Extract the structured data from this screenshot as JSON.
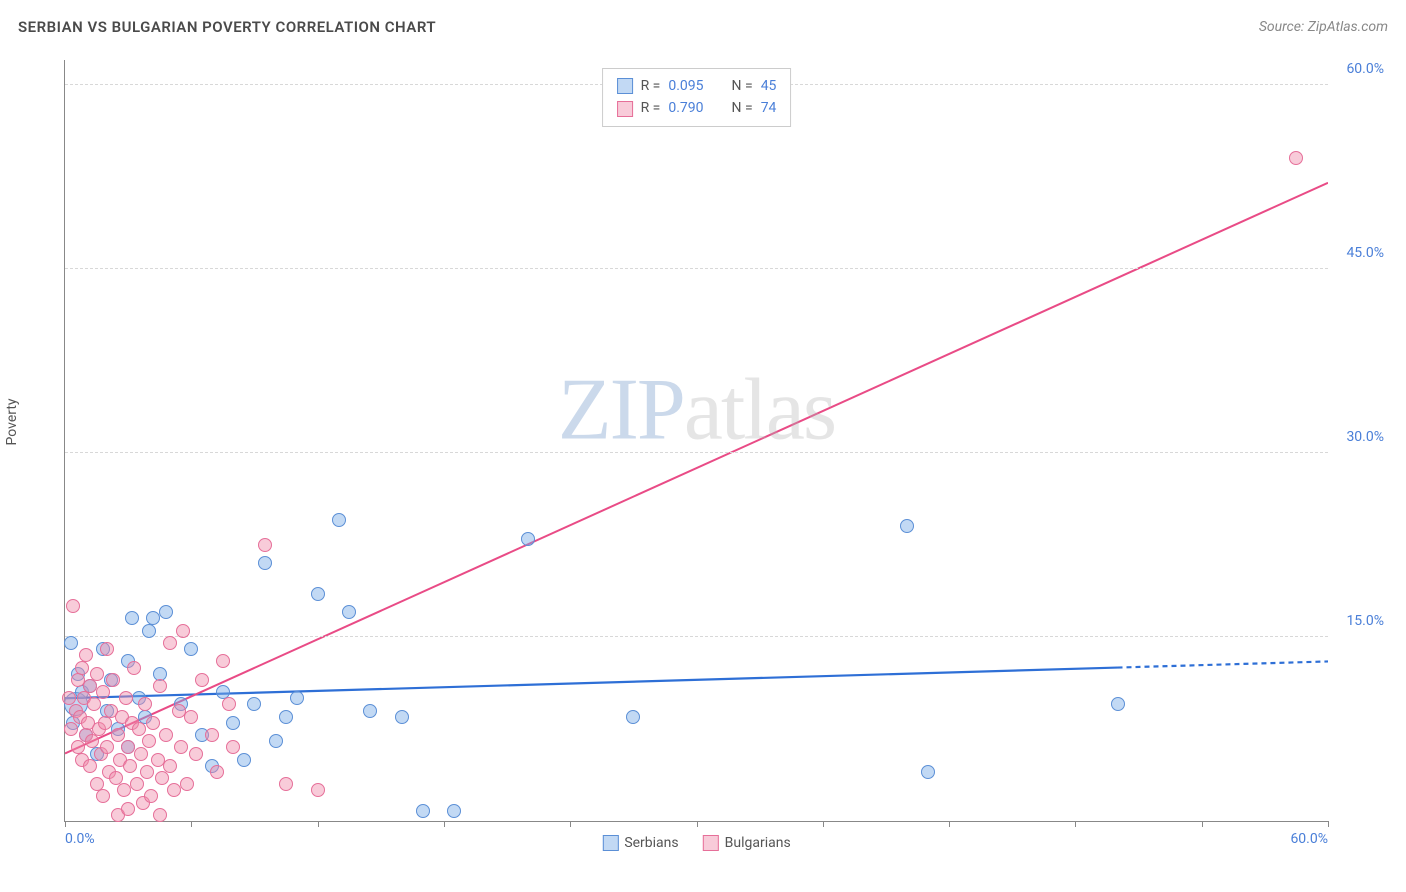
{
  "title": "SERBIAN VS BULGARIAN POVERTY CORRELATION CHART",
  "source_label": "Source: ZipAtlas.com",
  "y_axis_label": "Poverty",
  "watermark": {
    "part1": "ZIP",
    "part2": "atlas"
  },
  "chart": {
    "type": "scatter",
    "xlim": [
      0,
      60
    ],
    "ylim": [
      0,
      62
    ],
    "x_ticks": [
      0,
      6,
      12,
      18,
      24,
      30,
      36,
      42,
      48,
      54,
      60
    ],
    "x_tick_labels": {
      "0": "0.0%",
      "60": "60.0%"
    },
    "y_ticks": [
      15,
      30,
      45,
      60
    ],
    "y_tick_labels": [
      "15.0%",
      "30.0%",
      "45.0%",
      "60.0%"
    ],
    "grid_color": "#d8d8d8",
    "axis_color": "#888888",
    "background_color": "#ffffff",
    "marker_radius": 7,
    "marker_radius_large": 10,
    "series": [
      {
        "name": "Serbians",
        "fill": "rgba(120, 170, 230, 0.45)",
        "stroke": "#5b8fd6",
        "trend": {
          "x1": 0,
          "y1": 10.0,
          "x2": 50,
          "y2": 12.5,
          "x2_ext": 60,
          "y2_ext": 13.0,
          "color": "#2e6fd6",
          "width": 2.2
        },
        "points": [
          [
            0.3,
            14.5
          ],
          [
            0.4,
            8.0
          ],
          [
            0.5,
            9.5,
            12
          ],
          [
            0.6,
            12.0
          ],
          [
            0.8,
            10.5
          ],
          [
            1.0,
            7.0
          ],
          [
            1.2,
            11.0
          ],
          [
            1.5,
            5.5
          ],
          [
            1.8,
            14.0
          ],
          [
            2.0,
            9.0
          ],
          [
            2.2,
            11.5
          ],
          [
            2.5,
            7.5
          ],
          [
            3.0,
            13.0
          ],
          [
            3.0,
            6.0
          ],
          [
            3.2,
            16.5
          ],
          [
            3.5,
            10.0
          ],
          [
            3.8,
            8.5
          ],
          [
            4.0,
            15.5
          ],
          [
            4.2,
            16.5
          ],
          [
            4.5,
            12.0
          ],
          [
            4.8,
            17.0
          ],
          [
            5.5,
            9.5
          ],
          [
            6.0,
            14.0
          ],
          [
            6.5,
            7.0
          ],
          [
            7.0,
            4.5
          ],
          [
            7.5,
            10.5
          ],
          [
            8.0,
            8.0
          ],
          [
            8.5,
            5.0
          ],
          [
            9.0,
            9.5
          ],
          [
            9.5,
            21.0
          ],
          [
            10.0,
            6.5
          ],
          [
            10.5,
            8.5
          ],
          [
            11.0,
            10.0
          ],
          [
            12.0,
            18.5
          ],
          [
            13.0,
            24.5
          ],
          [
            13.5,
            17.0
          ],
          [
            14.5,
            9.0
          ],
          [
            16.0,
            8.5
          ],
          [
            17.0,
            0.8
          ],
          [
            18.5,
            0.8
          ],
          [
            22.0,
            23.0
          ],
          [
            27.0,
            8.5
          ],
          [
            40.0,
            24.0
          ],
          [
            41.0,
            4.0
          ],
          [
            50.0,
            9.5
          ]
        ]
      },
      {
        "name": "Bulgarians",
        "fill": "rgba(240, 140, 170, 0.45)",
        "stroke": "#e66f99",
        "trend": {
          "x1": 0,
          "y1": 5.5,
          "x2": 60,
          "y2": 52.0,
          "color": "#e94b86",
          "width": 2
        },
        "points": [
          [
            0.2,
            10.0
          ],
          [
            0.3,
            7.5
          ],
          [
            0.4,
            17.5
          ],
          [
            0.5,
            9.0
          ],
          [
            0.6,
            11.5
          ],
          [
            0.6,
            6.0
          ],
          [
            0.7,
            8.5
          ],
          [
            0.8,
            12.5
          ],
          [
            0.8,
            5.0
          ],
          [
            0.9,
            10.0
          ],
          [
            1.0,
            7.0
          ],
          [
            1.0,
            13.5
          ],
          [
            1.1,
            8.0
          ],
          [
            1.2,
            4.5
          ],
          [
            1.2,
            11.0
          ],
          [
            1.3,
            6.5
          ],
          [
            1.4,
            9.5
          ],
          [
            1.5,
            3.0
          ],
          [
            1.5,
            12.0
          ],
          [
            1.6,
            7.5
          ],
          [
            1.7,
            5.5
          ],
          [
            1.8,
            10.5
          ],
          [
            1.8,
            2.0
          ],
          [
            1.9,
            8.0
          ],
          [
            2.0,
            14.0
          ],
          [
            2.0,
            6.0
          ],
          [
            2.1,
            4.0
          ],
          [
            2.2,
            9.0
          ],
          [
            2.3,
            11.5
          ],
          [
            2.4,
            3.5
          ],
          [
            2.5,
            7.0
          ],
          [
            2.5,
            0.5
          ],
          [
            2.6,
            5.0
          ],
          [
            2.7,
            8.5
          ],
          [
            2.8,
            2.5
          ],
          [
            2.9,
            10.0
          ],
          [
            3.0,
            6.0
          ],
          [
            3.0,
            1.0
          ],
          [
            3.1,
            4.5
          ],
          [
            3.2,
            8.0
          ],
          [
            3.3,
            12.5
          ],
          [
            3.4,
            3.0
          ],
          [
            3.5,
            7.5
          ],
          [
            3.6,
            5.5
          ],
          [
            3.7,
            1.5
          ],
          [
            3.8,
            9.5
          ],
          [
            3.9,
            4.0
          ],
          [
            4.0,
            6.5
          ],
          [
            4.1,
            2.0
          ],
          [
            4.2,
            8.0
          ],
          [
            4.4,
            5.0
          ],
          [
            4.5,
            11.0
          ],
          [
            4.5,
            0.5
          ],
          [
            4.6,
            3.5
          ],
          [
            4.8,
            7.0
          ],
          [
            5.0,
            4.5
          ],
          [
            5.0,
            14.5
          ],
          [
            5.2,
            2.5
          ],
          [
            5.4,
            9.0
          ],
          [
            5.5,
            6.0
          ],
          [
            5.6,
            15.5
          ],
          [
            5.8,
            3.0
          ],
          [
            6.0,
            8.5
          ],
          [
            6.2,
            5.5
          ],
          [
            6.5,
            11.5
          ],
          [
            7.0,
            7.0
          ],
          [
            7.2,
            4.0
          ],
          [
            7.5,
            13.0
          ],
          [
            7.8,
            9.5
          ],
          [
            8.0,
            6.0
          ],
          [
            9.5,
            22.5
          ],
          [
            10.5,
            3.0
          ],
          [
            12.0,
            2.5
          ],
          [
            58.5,
            54.0
          ]
        ]
      }
    ]
  },
  "legend_top": {
    "rows": [
      {
        "swatch_fill": "rgba(120, 170, 230, 0.45)",
        "swatch_stroke": "#5b8fd6",
        "r_label": "R = ",
        "r_val": "0.095",
        "n_label": "N = ",
        "n_val": "45"
      },
      {
        "swatch_fill": "rgba(240, 140, 170, 0.45)",
        "swatch_stroke": "#e66f99",
        "r_label": "R = ",
        "r_val": "0.790",
        "n_label": "N = ",
        "n_val": "74"
      }
    ]
  },
  "legend_bottom": {
    "items": [
      {
        "swatch_fill": "rgba(120, 170, 230, 0.45)",
        "swatch_stroke": "#5b8fd6",
        "label": "Serbians"
      },
      {
        "swatch_fill": "rgba(240, 140, 170, 0.45)",
        "swatch_stroke": "#e66f99",
        "label": "Bulgarians"
      }
    ]
  }
}
